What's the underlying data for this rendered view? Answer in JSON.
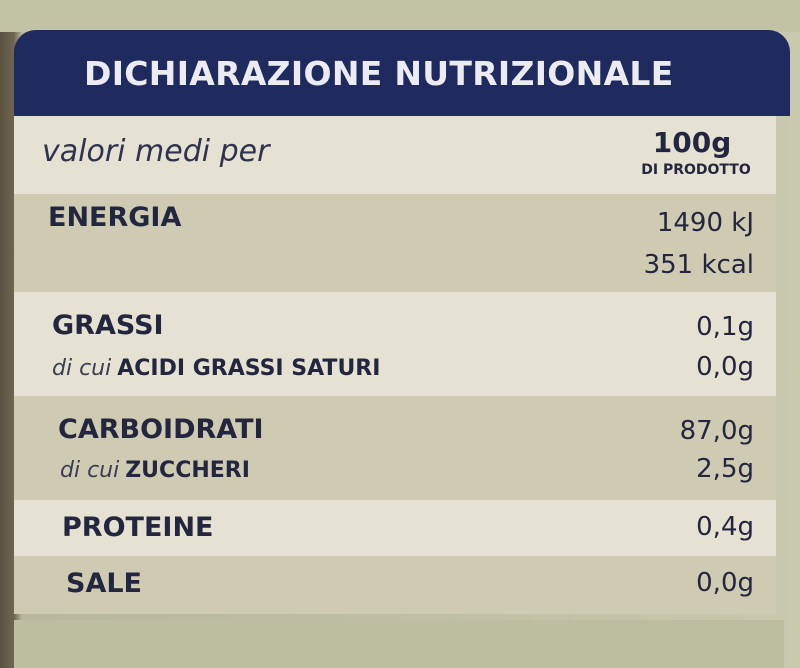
{
  "title": "DICHIARAZIONE NUTRIZIONALE",
  "per": {
    "label": "valori medi per",
    "amount": "100g",
    "amount_note": "DI PRODOTTO"
  },
  "rows": {
    "energia": {
      "label": "ENERGIA",
      "kj": "1490 kJ",
      "kcal": "351 kcal"
    },
    "grassi": {
      "label": "GRASSI",
      "value": "0,1g",
      "sub_prefix": "di cui",
      "sub_label": "ACIDI GRASSI SATURI",
      "sub_value": "0,0g"
    },
    "carboidrati": {
      "label": "CARBOIDRATI",
      "value": "87,0g",
      "sub_prefix": "di cui",
      "sub_label": "ZUCCHERI",
      "sub_value": "2,5g"
    },
    "proteine": {
      "label": "PROTEINE",
      "value": "0,4g"
    },
    "sale": {
      "label": "SALE",
      "value": "0,0g"
    }
  },
  "colors": {
    "header": "#1f2b5e",
    "text": "#23263f",
    "row_light": "#e6e2d3",
    "row_dark": "#cfcbb2"
  }
}
